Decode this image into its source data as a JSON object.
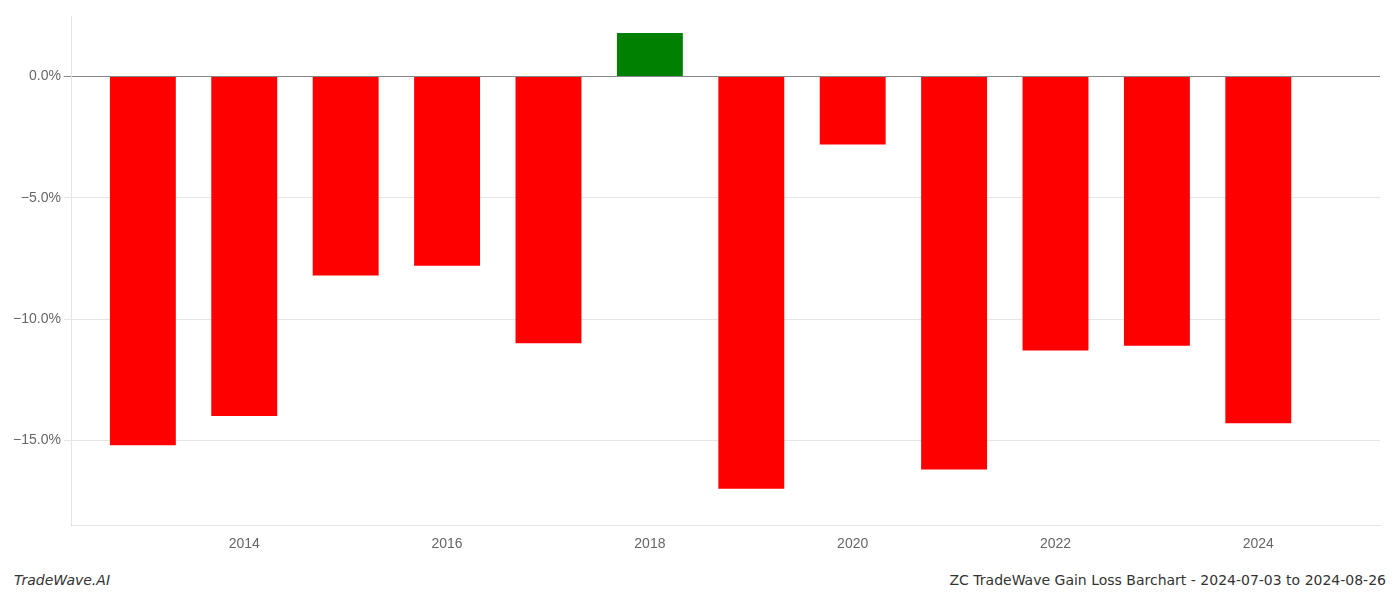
{
  "chart_data": {
    "type": "bar",
    "x": [
      2013,
      2014,
      2015,
      2016,
      2017,
      2018,
      2019,
      2020,
      2021,
      2022,
      2023,
      2024
    ],
    "values": [
      -15.2,
      -14.0,
      -8.2,
      -7.8,
      -11.0,
      1.8,
      -17.0,
      -2.8,
      -16.2,
      -11.3,
      -11.1,
      -14.3
    ],
    "colors": [
      "#ff0000",
      "#ff0000",
      "#ff0000",
      "#ff0000",
      "#ff0000",
      "#008000",
      "#ff0000",
      "#ff0000",
      "#ff0000",
      "#ff0000",
      "#ff0000",
      "#ff0000"
    ],
    "xlim": [
      2012.3,
      2025.2
    ],
    "xticks": [
      2014,
      2016,
      2018,
      2020,
      2022,
      2024
    ],
    "ylim": [
      -18.5,
      2.5
    ],
    "yticks": [
      {
        "value": 0.0,
        "label": "0.0%"
      },
      {
        "value": -5.0,
        "label": "−5.0%"
      },
      {
        "value": -10.0,
        "label": "−10.0%"
      },
      {
        "value": -15.0,
        "label": "−15.0%"
      }
    ],
    "grid": true,
    "annotations": [
      "TradeWave.AI",
      "ZC TradeWave Gain Loss Barchart - 2024-07-03 to 2024-08-26"
    ]
  }
}
